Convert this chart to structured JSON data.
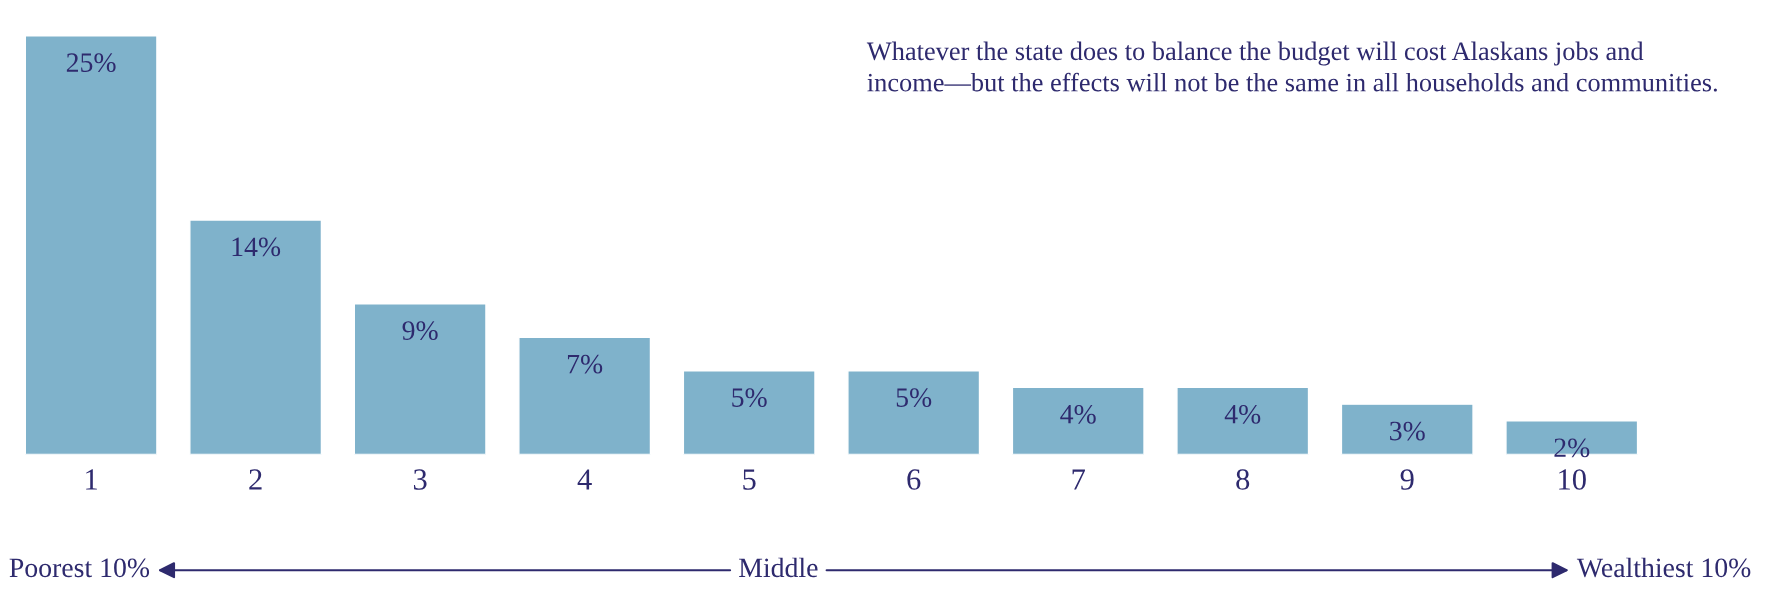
{
  "chart_data": {
    "type": "bar",
    "categories": [
      "1",
      "2",
      "3",
      "4",
      "5",
      "6",
      "7",
      "8",
      "9",
      "10"
    ],
    "values": [
      25,
      14,
      9,
      7,
      5,
      5,
      4,
      4,
      3,
      2
    ],
    "value_labels": [
      "25%",
      "14%",
      "9%",
      "7%",
      "5%",
      "5%",
      "4%",
      "4%",
      "3%",
      "2%"
    ],
    "color": "#7fb2cb",
    "tick_labels": "x",
    "grid": false,
    "annotations": [
      "Whatever the state does to balance the budget will cost Alaskans jobs and income—but the effects will not be the same in all households and communities.",
      "Poorest 10%",
      "Middle",
      "Wealthiest 10%"
    ]
  }
}
